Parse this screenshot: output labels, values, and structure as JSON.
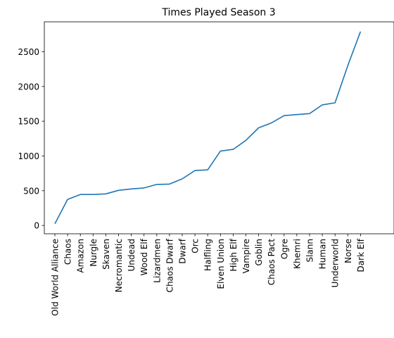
{
  "chart_data": {
    "type": "line",
    "title": "Times Played Season 3",
    "xlabel": "",
    "ylabel": "",
    "categories": [
      "Old World Alliance",
      "Chaos",
      "Amazon",
      "Nurgle",
      "Skaven",
      "Necromantic",
      "Undead",
      "Wood Elf",
      "Lizardmen",
      "Chaos Dwarf",
      "Dwarf",
      "Orc",
      "Halfling",
      "Elven Union",
      "High Elf",
      "Vampire",
      "Goblin",
      "Chaos Pact",
      "Ogre",
      "Khemri",
      "Slann",
      "Human",
      "Underworld",
      "Norse",
      "Dark Elf"
    ],
    "series": [
      {
        "values": [
          25,
          375,
          445,
          445,
          455,
          505,
          525,
          540,
          590,
          595,
          670,
          790,
          800,
          1070,
          1095,
          1225,
          1405,
          1475,
          1580,
          1595,
          1610,
          1735,
          1765,
          2300,
          2790
        ],
        "color": "#1f77b4"
      }
    ],
    "ylim": [
      -120,
      2930
    ],
    "yticks": [
      0,
      500,
      1000,
      1500,
      2000,
      2500
    ],
    "grid": false,
    "legend": "none"
  }
}
